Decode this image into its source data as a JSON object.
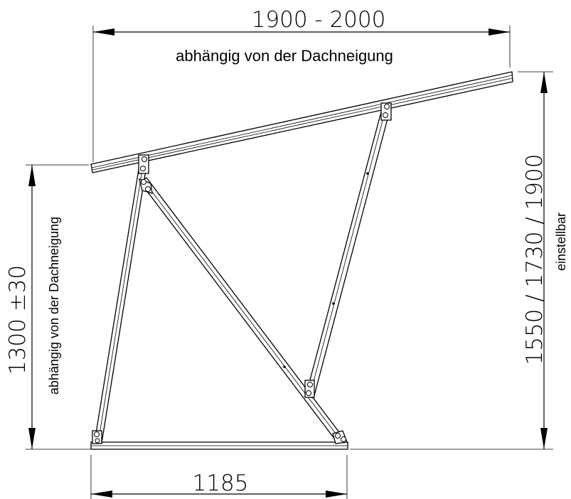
{
  "dimensions": {
    "top_width": "1900 - 2000",
    "top_note": "abhängig von der Dachneigung",
    "left_height": "1300 ±30",
    "left_note": "abhängig von der Dachneigung",
    "right_height": "1550 / 1730 / 1900",
    "right_note": "einstellbar",
    "base_width": "1185"
  }
}
